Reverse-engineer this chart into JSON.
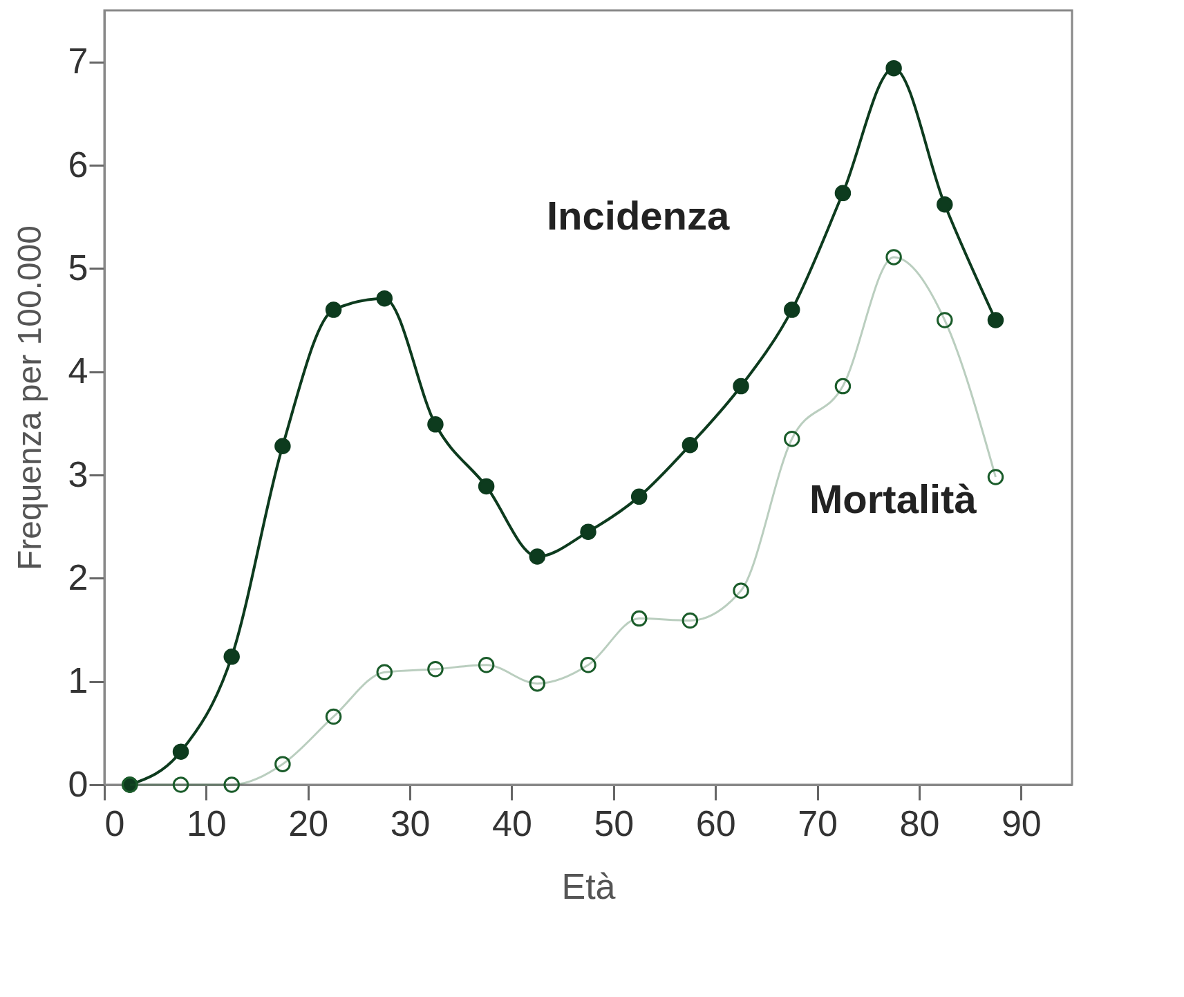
{
  "chart_data": {
    "type": "line",
    "xlabel": "Età",
    "ylabel": "Frequenza per 100.000",
    "x": [
      2.5,
      7.5,
      12.5,
      17.5,
      22.5,
      27.5,
      32.5,
      37.5,
      42.5,
      47.5,
      52.5,
      57.5,
      62.5,
      67.5,
      72.5,
      77.5,
      82.5,
      87.5
    ],
    "series": [
      {
        "name": "Incidenza",
        "color": "#0d3b1e",
        "marker": "circle",
        "values": [
          0,
          0.32,
          1.24,
          3.28,
          4.6,
          4.71,
          3.49,
          2.89,
          2.21,
          2.45,
          2.79,
          3.29,
          3.86,
          4.6,
          5.73,
          6.94,
          5.62,
          4.5
        ]
      },
      {
        "name": "Mortalità",
        "color": "#1a5c2a",
        "marker": "circle",
        "values": [
          0,
          0,
          0,
          0.2,
          0.66,
          1.09,
          1.12,
          1.16,
          0.98,
          1.16,
          1.61,
          1.59,
          1.88,
          3.35,
          3.86,
          5.11,
          4.5,
          2.98
        ]
      }
    ],
    "xlim": [
      0,
      95
    ],
    "xticks": [
      0,
      10,
      20,
      30,
      40,
      50,
      60,
      70,
      80,
      90
    ],
    "ylim": [
      0,
      7.5
    ],
    "yticks": [
      0,
      1,
      2,
      3,
      4,
      5,
      6,
      7
    ],
    "grid": false,
    "legend": false,
    "line_style": "solid"
  }
}
